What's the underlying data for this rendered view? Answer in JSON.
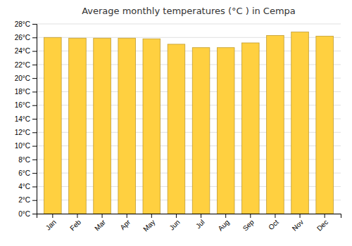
{
  "chart_data": {
    "type": "bar",
    "title": "Average monthly temperatures (°C ) in Cempa",
    "categories": [
      "Jan",
      "Feb",
      "Mar",
      "Apr",
      "May",
      "Jun",
      "Jul",
      "Aug",
      "Sep",
      "Oct",
      "Nov",
      "Dec"
    ],
    "values": [
      26.0,
      25.9,
      25.9,
      25.9,
      25.8,
      25.0,
      24.5,
      24.5,
      25.2,
      26.3,
      26.8,
      26.2
    ],
    "color": "#FFD040",
    "ylim": [
      0,
      28
    ],
    "yticks": [
      {
        "value": 0,
        "label": "0°C"
      },
      {
        "value": 2,
        "label": "2°C"
      },
      {
        "value": 4,
        "label": "4°C"
      },
      {
        "value": 6,
        "label": "6°C"
      },
      {
        "value": 8,
        "label": "8°C"
      },
      {
        "value": 10,
        "label": "10°C"
      },
      {
        "value": 12,
        "label": "12°C"
      },
      {
        "value": 14,
        "label": "14°C"
      },
      {
        "value": 16,
        "label": "16°C"
      },
      {
        "value": 18,
        "label": "18°C"
      },
      {
        "value": 20,
        "label": "20°C"
      },
      {
        "value": 22,
        "label": "22°C"
      },
      {
        "value": 24,
        "label": "24°C"
      },
      {
        "value": 26,
        "label": "26°C"
      },
      {
        "value": 28,
        "label": "28°C"
      }
    ],
    "grid": true
  }
}
